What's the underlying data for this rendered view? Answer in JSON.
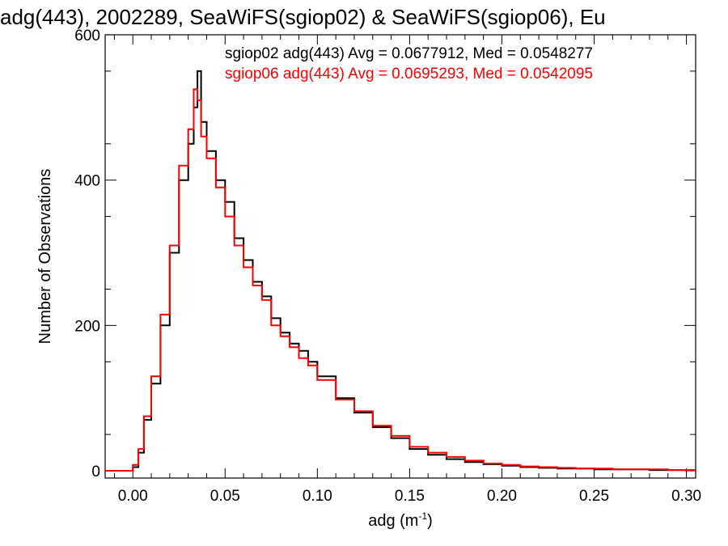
{
  "chart_data": {
    "type": "line",
    "title": "adg(443), 2002289, SeaWiFS(sgiop02) & SeaWiFS(sgiop06), Eu",
    "xlabel_base": "adg (m",
    "xlabel_sup": "-1",
    "xlabel_end": ")",
    "ylabel": "Number of Observations",
    "xlim": [
      -0.015,
      0.305
    ],
    "ylim": [
      -10,
      600
    ],
    "x_ticks": [
      0.0,
      0.05,
      0.1,
      0.15,
      0.2,
      0.25,
      0.3
    ],
    "x_tick_labels": [
      "0.00",
      "0.05",
      "0.10",
      "0.15",
      "0.20",
      "0.25",
      "0.30"
    ],
    "y_ticks": [
      0,
      200,
      400,
      600
    ],
    "y_tick_labels": [
      "0",
      "200",
      "400",
      "600"
    ],
    "legend_position": "top-right",
    "series": [
      {
        "name": "sgiop02",
        "annotation": "sgiop02 adg(443) Avg = 0.0677912, Med = 0.0548277",
        "color": "#000000",
        "x": [
          -0.015,
          0.0,
          0.003,
          0.006,
          0.01,
          0.015,
          0.02,
          0.025,
          0.03,
          0.033,
          0.035,
          0.037,
          0.04,
          0.045,
          0.05,
          0.055,
          0.06,
          0.065,
          0.07,
          0.075,
          0.08,
          0.085,
          0.09,
          0.095,
          0.1,
          0.11,
          0.12,
          0.13,
          0.14,
          0.15,
          0.16,
          0.17,
          0.18,
          0.19,
          0.2,
          0.21,
          0.22,
          0.23,
          0.24,
          0.25,
          0.26,
          0.27,
          0.28,
          0.29,
          0.3,
          0.305
        ],
        "y": [
          0,
          5,
          25,
          70,
          120,
          200,
          300,
          400,
          450,
          500,
          550,
          480,
          440,
          400,
          370,
          320,
          290,
          260,
          240,
          210,
          190,
          175,
          165,
          150,
          130,
          100,
          80,
          60,
          45,
          30,
          22,
          16,
          12,
          9,
          7,
          5,
          4,
          3,
          3,
          2,
          2,
          2,
          1,
          1,
          1,
          1
        ]
      },
      {
        "name": "sgiop06",
        "annotation": "sgiop06 adg(443) Avg = 0.0695293, Med = 0.0542095",
        "color": "#ff0000",
        "x": [
          -0.015,
          0.0,
          0.003,
          0.006,
          0.01,
          0.015,
          0.02,
          0.025,
          0.03,
          0.033,
          0.035,
          0.037,
          0.04,
          0.045,
          0.05,
          0.055,
          0.06,
          0.065,
          0.07,
          0.075,
          0.08,
          0.085,
          0.09,
          0.095,
          0.1,
          0.11,
          0.12,
          0.13,
          0.14,
          0.15,
          0.16,
          0.17,
          0.18,
          0.19,
          0.2,
          0.21,
          0.22,
          0.23,
          0.24,
          0.25,
          0.26,
          0.27,
          0.28,
          0.29,
          0.3,
          0.305
        ],
        "y": [
          0,
          8,
          30,
          75,
          130,
          215,
          310,
          420,
          470,
          525,
          510,
          460,
          430,
          390,
          350,
          310,
          280,
          255,
          235,
          200,
          185,
          170,
          155,
          145,
          125,
          98,
          82,
          62,
          48,
          33,
          25,
          19,
          14,
          10,
          8,
          6,
          5,
          4,
          3,
          3,
          2,
          2,
          2,
          1,
          1,
          1
        ]
      }
    ]
  }
}
